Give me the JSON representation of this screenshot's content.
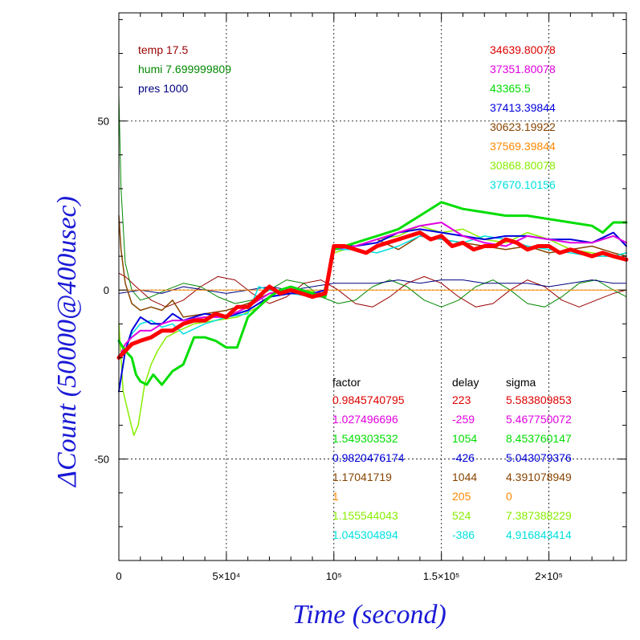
{
  "chart_data": {
    "type": "line",
    "xlabel": "Time (second)",
    "ylabel": "ΔCount (50000@400usec)",
    "xlim": [
      0,
      236000
    ],
    "ylim": [
      -80,
      82
    ],
    "x_ticks": [
      {
        "value": 0,
        "label": "0"
      },
      {
        "value": 50000,
        "label": "5×10⁴"
      },
      {
        "value": 100000,
        "label": "10⁵"
      },
      {
        "value": 150000,
        "label": "1.5×10⁵"
      },
      {
        "value": 200000,
        "label": "2×10⁵"
      }
    ],
    "y_ticks": [
      {
        "value": -50,
        "label": "-50"
      },
      {
        "value": 0,
        "label": "0"
      },
      {
        "value": 50,
        "label": "50"
      }
    ],
    "grid": true,
    "conditions": [
      {
        "text": "temp 17.5",
        "color": "#990000"
      },
      {
        "text": "humi 7.699999809",
        "color": "#008800"
      },
      {
        "text": "pres 1000",
        "color": "#000080"
      }
    ],
    "series_labels": [
      {
        "text": "34639.80078",
        "color": "#dd0000"
      },
      {
        "text": "37351.80078",
        "color": "#e000e0"
      },
      {
        "text": "43365.5",
        "color": "#00dd00"
      },
      {
        "text": "37413.39844",
        "color": "#0000dd"
      },
      {
        "text": "30623.19922",
        "color": "#884400"
      },
      {
        "text": "37569.39844",
        "color": "#ff8800"
      },
      {
        "text": "30868.80078",
        "color": "#88ee00"
      },
      {
        "text": "37670.10156",
        "color": "#00e0e0"
      }
    ],
    "fit_table": {
      "headers": [
        "factor",
        "delay",
        "sigma"
      ],
      "rows": [
        {
          "factor": "0.9845740795",
          "delay": "223",
          "sigma": "5.583809853",
          "color": "#dd0000"
        },
        {
          "factor": "1.027496696",
          "delay": "-259",
          "sigma": "5.467750072",
          "color": "#e000e0"
        },
        {
          "factor": "1.549303532",
          "delay": "1054",
          "sigma": "8.453760147",
          "color": "#00dd00"
        },
        {
          "factor": "0.9820476174",
          "delay": "-426",
          "sigma": "5.043079376",
          "color": "#0000dd"
        },
        {
          "factor": "1.17041719",
          "delay": "1044",
          "sigma": "4.391078949",
          "color": "#884400"
        },
        {
          "factor": "1",
          "delay": "205",
          "sigma": "0",
          "color": "#ff8800"
        },
        {
          "factor": "1.155544043",
          "delay": "524",
          "sigma": "7.387388229",
          "color": "#88ee00"
        },
        {
          "factor": "1.045304894",
          "delay": "-386",
          "sigma": "4.916843414",
          "color": "#00e0e0"
        }
      ]
    },
    "series": [
      {
        "color": "#990000",
        "width": 1,
        "x": [
          0,
          3000,
          8000,
          15000,
          22000,
          30000,
          38000,
          46000,
          54000,
          62000,
          70000,
          78000,
          86000,
          94000,
          102000,
          110000,
          118000,
          126000,
          134000,
          142000,
          150000,
          158000,
          166000,
          174000,
          182000,
          190000,
          198000,
          206000,
          214000,
          222000,
          230000,
          236000
        ],
        "y": [
          5,
          4,
          1,
          -3,
          -5,
          -3,
          1,
          4,
          3,
          -1,
          -4,
          -2,
          2,
          3,
          0,
          -4,
          -5,
          -2,
          2,
          4,
          2,
          -2,
          -5,
          -4,
          0,
          3,
          1,
          -3,
          -5,
          -3,
          -1,
          0
        ]
      },
      {
        "color": "#008800",
        "width": 1,
        "x": [
          0,
          1000,
          3000,
          6000,
          10000,
          15000,
          22000,
          30000,
          38000,
          46000,
          54000,
          62000,
          70000,
          78000,
          86000,
          94000,
          102000,
          110000,
          118000,
          126000,
          134000,
          142000,
          150000,
          158000,
          166000,
          174000,
          182000,
          190000,
          198000,
          206000,
          214000,
          222000,
          230000,
          236000
        ],
        "y": [
          58,
          30,
          8,
          0,
          -3,
          -2,
          0,
          2,
          1,
          -2,
          -4,
          -3,
          0,
          3,
          2,
          -2,
          -4,
          -3,
          1,
          3,
          1,
          -3,
          -5,
          -3,
          1,
          3,
          0,
          -4,
          -5,
          -2,
          2,
          3,
          0,
          -2
        ]
      },
      {
        "color": "#000080",
        "width": 1,
        "x": [
          0,
          10000,
          20000,
          30000,
          40000,
          50000,
          60000,
          70000,
          80000,
          90000,
          100000,
          110000,
          120000,
          130000,
          140000,
          150000,
          160000,
          170000,
          180000,
          190000,
          200000,
          210000,
          220000,
          230000,
          236000
        ],
        "y": [
          -1,
          0,
          -1,
          1,
          0,
          -1,
          0,
          1,
          0,
          1,
          2,
          2,
          2,
          3,
          2,
          3,
          3,
          2,
          2,
          2,
          1,
          2,
          3,
          2,
          2
        ]
      },
      {
        "color": "#ff8800",
        "width": 1,
        "x": [
          0,
          236000
        ],
        "y": [
          0,
          0
        ]
      },
      {
        "color": "#884400",
        "width": 1.5,
        "x": [
          0,
          1000,
          3000,
          6000,
          10000,
          15000,
          20000,
          25000,
          30000,
          40000,
          50000,
          60000,
          70000,
          80000,
          90000,
          96000,
          100000,
          110000,
          120000,
          130000,
          140000,
          150000,
          160000,
          170000,
          180000,
          190000,
          200000,
          210000,
          220000,
          230000,
          236000
        ],
        "y": [
          22,
          12,
          2,
          -4,
          -6,
          -5,
          -6,
          -3,
          -8,
          -7,
          -6,
          -4,
          -1,
          0,
          -2,
          -2,
          12,
          13,
          15,
          12,
          16,
          15,
          14,
          13,
          12,
          13,
          11,
          12,
          13,
          11,
          10
        ]
      },
      {
        "color": "#88ee00",
        "width": 1.5,
        "x": [
          0,
          2000,
          5000,
          7000,
          9000,
          12000,
          15000,
          18000,
          22000,
          28000,
          35000,
          45000,
          55000,
          65000,
          75000,
          85000,
          95000,
          100000,
          110000,
          120000,
          130000,
          140000,
          150000,
          160000,
          170000,
          180000,
          190000,
          200000,
          210000,
          220000,
          230000,
          236000
        ],
        "y": [
          -10,
          -30,
          -38,
          -43,
          -40,
          -28,
          -22,
          -18,
          -14,
          -12,
          -10,
          -9,
          -8,
          -5,
          0,
          0,
          -1,
          11,
          13,
          15,
          16,
          19,
          17,
          18,
          15,
          14,
          17,
          15,
          12,
          11,
          10,
          11
        ]
      },
      {
        "color": "#00e0e0",
        "width": 1.5,
        "x": [
          0,
          3000,
          6000,
          10000,
          15000,
          20000,
          25000,
          30000,
          40000,
          50000,
          60000,
          65000,
          70000,
          80000,
          90000,
          96000,
          100000,
          110000,
          120000,
          130000,
          140000,
          150000,
          160000,
          170000,
          180000,
          190000,
          200000,
          210000,
          220000,
          230000,
          236000
        ],
        "y": [
          -30,
          -18,
          -13,
          -10,
          -9,
          -11,
          -10,
          -13,
          -10,
          -8,
          -7,
          1,
          0,
          -1,
          -2,
          -1,
          12,
          12,
          11,
          13,
          16,
          15,
          14,
          16,
          15,
          13,
          12,
          11,
          10,
          10,
          11
        ]
      },
      {
        "color": "#0000dd",
        "width": 2,
        "x": [
          0,
          3000,
          6000,
          10000,
          15000,
          20000,
          25000,
          30000,
          40000,
          50000,
          60000,
          70000,
          80000,
          90000,
          96000,
          100000,
          110000,
          120000,
          130000,
          140000,
          150000,
          160000,
          170000,
          180000,
          190000,
          200000,
          210000,
          220000,
          230000,
          236000
        ],
        "y": [
          -30,
          -18,
          -12,
          -8,
          -10,
          -10,
          -7,
          -9,
          -7,
          -8,
          -6,
          -2,
          -1,
          -1,
          0,
          13,
          13,
          14,
          17,
          18,
          17,
          16,
          15,
          16,
          16,
          15,
          15,
          14,
          17,
          13
        ]
      },
      {
        "color": "#e000e0",
        "width": 2,
        "x": [
          0,
          3000,
          6000,
          10000,
          15000,
          20000,
          25000,
          30000,
          40000,
          50000,
          60000,
          70000,
          80000,
          90000,
          96000,
          100000,
          110000,
          120000,
          130000,
          140000,
          150000,
          160000,
          170000,
          180000,
          190000,
          200000,
          210000,
          220000,
          230000,
          236000
        ],
        "y": [
          -20,
          -16,
          -14,
          -12,
          -12,
          -10,
          -9,
          -9,
          -8,
          -8,
          -5,
          -1,
          0,
          -1,
          -1,
          12,
          13,
          15,
          17,
          19,
          20,
          16,
          14,
          13,
          16,
          15,
          14,
          14,
          16,
          14
        ]
      },
      {
        "color": "#00dd00",
        "width": 3,
        "x": [
          0,
          3000,
          6000,
          8000,
          10000,
          13000,
          16000,
          20000,
          25000,
          30000,
          35000,
          40000,
          45000,
          50000,
          55000,
          60000,
          65000,
          70000,
          75000,
          80000,
          85000,
          90000,
          96000,
          100000,
          105000,
          110000,
          120000,
          130000,
          140000,
          150000,
          160000,
          170000,
          180000,
          190000,
          200000,
          210000,
          220000,
          225000,
          230000,
          236000
        ],
        "y": [
          -15,
          -18,
          -20,
          -25,
          -27,
          -28,
          -25,
          -28,
          -24,
          -22,
          -14,
          -14,
          -15,
          -17,
          -17,
          -8,
          -5,
          -2,
          0,
          1,
          0,
          -1,
          -2,
          12,
          13,
          14,
          16,
          18,
          22,
          26,
          24,
          23,
          22,
          22,
          21,
          20,
          19,
          17,
          20,
          20
        ]
      },
      {
        "color": "#ff0000",
        "width": 5,
        "x": [
          0,
          3000,
          6000,
          10000,
          15000,
          20000,
          25000,
          30000,
          35000,
          40000,
          45000,
          50000,
          55000,
          60000,
          65000,
          70000,
          75000,
          80000,
          85000,
          90000,
          96000,
          100000,
          105000,
          110000,
          115000,
          120000,
          125000,
          130000,
          135000,
          140000,
          145000,
          150000,
          155000,
          160000,
          165000,
          170000,
          175000,
          180000,
          185000,
          190000,
          195000,
          200000,
          205000,
          210000,
          215000,
          220000,
          225000,
          230000,
          236000
        ],
        "y": [
          -20,
          -18,
          -16,
          -15,
          -14,
          -12,
          -12,
          -10,
          -9,
          -9,
          -7,
          -8,
          -5,
          -5,
          -2,
          1,
          -1,
          0,
          -1,
          -2,
          -1,
          13,
          13,
          12,
          11,
          13,
          14,
          15,
          16,
          17,
          15,
          16,
          13,
          14,
          12,
          13,
          13,
          15,
          14,
          12,
          13,
          13,
          11,
          12,
          11,
          10,
          11,
          10,
          9
        ]
      }
    ]
  }
}
